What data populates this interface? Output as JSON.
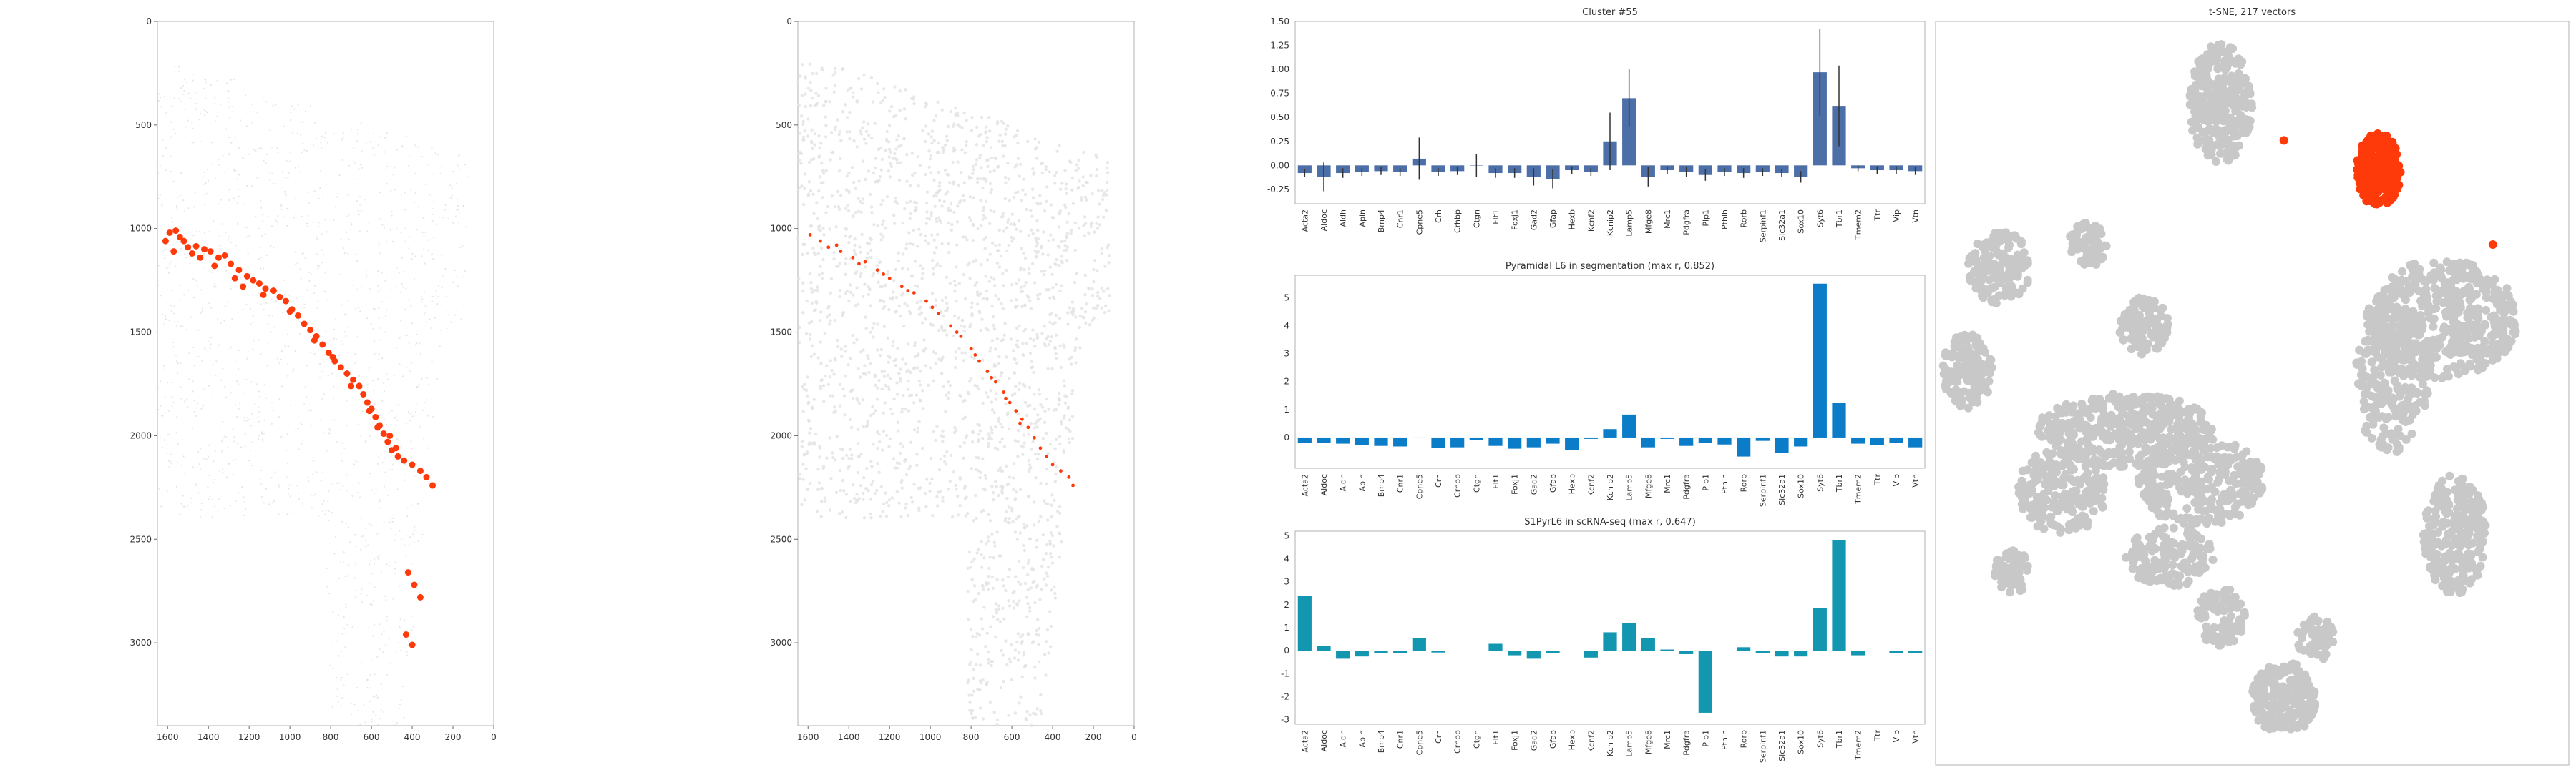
{
  "colors": {
    "highlight": "#ff3a0a",
    "bar_cluster": "#4c6fa8",
    "bar_segmentation": "#0a7cc8",
    "bar_scrnaseq": "#1396b0",
    "tsne_gray": "#c8c8c8",
    "tissue_gray": "#e2e2e2",
    "axis": "#b0b0b0"
  },
  "chart_data": [
    {
      "type": "scatter",
      "title": "",
      "xlim": [
        1650,
        0
      ],
      "ylim": [
        3400,
        0
      ],
      "xticks": [
        1600,
        1400,
        1200,
        1000,
        800,
        600,
        400,
        200,
        0
      ],
      "yticks": [
        0,
        500,
        1000,
        1500,
        2000,
        2500,
        3000
      ],
      "highlighted_points": [
        [
          1590,
          1020
        ],
        [
          1560,
          1010
        ],
        [
          1540,
          1040
        ],
        [
          1520,
          1060
        ],
        [
          1500,
          1090
        ],
        [
          1460,
          1085
        ],
        [
          1420,
          1100
        ],
        [
          1390,
          1110
        ],
        [
          1350,
          1140
        ],
        [
          1320,
          1130
        ],
        [
          1290,
          1170
        ],
        [
          1250,
          1200
        ],
        [
          1210,
          1230
        ],
        [
          1180,
          1250
        ],
        [
          1150,
          1265
        ],
        [
          1120,
          1290
        ],
        [
          1080,
          1300
        ],
        [
          1050,
          1330
        ],
        [
          1020,
          1350
        ],
        [
          990,
          1390
        ],
        [
          960,
          1420
        ],
        [
          930,
          1460
        ],
        [
          900,
          1490
        ],
        [
          870,
          1520
        ],
        [
          840,
          1560
        ],
        [
          810,
          1600
        ],
        [
          780,
          1640
        ],
        [
          750,
          1670
        ],
        [
          720,
          1700
        ],
        [
          690,
          1730
        ],
        [
          660,
          1760
        ],
        [
          640,
          1800
        ],
        [
          620,
          1840
        ],
        [
          600,
          1870
        ],
        [
          580,
          1910
        ],
        [
          560,
          1950
        ],
        [
          540,
          1990
        ],
        [
          520,
          2030
        ],
        [
          500,
          2070
        ],
        [
          470,
          2100
        ],
        [
          440,
          2120
        ],
        [
          400,
          2140
        ],
        [
          360,
          2170
        ],
        [
          330,
          2200
        ],
        [
          300,
          2240
        ],
        [
          420,
          2660
        ],
        [
          390,
          2720
        ],
        [
          360,
          2780
        ],
        [
          430,
          2960
        ],
        [
          400,
          3010
        ],
        [
          1610,
          1060
        ],
        [
          1570,
          1110
        ],
        [
          1480,
          1120
        ],
        [
          1440,
          1140
        ],
        [
          1370,
          1180
        ],
        [
          1270,
          1240
        ],
        [
          1230,
          1280
        ],
        [
          1130,
          1320
        ],
        [
          1000,
          1400
        ],
        [
          880,
          1540
        ],
        [
          790,
          1620
        ],
        [
          700,
          1760
        ],
        [
          610,
          1880
        ],
        [
          570,
          1960
        ],
        [
          510,
          2000
        ],
        [
          480,
          2060
        ]
      ]
    },
    {
      "type": "scatter",
      "title": "",
      "xlim": [
        1650,
        0
      ],
      "ylim": [
        3400,
        0
      ],
      "xticks": [
        1600,
        1400,
        1200,
        1000,
        800,
        600,
        400,
        200,
        0
      ],
      "yticks": [
        0,
        500,
        1000,
        1500,
        2000,
        2500,
        3000
      ],
      "highlighted_points": [
        [
          1590,
          1030
        ],
        [
          1540,
          1060
        ],
        [
          1500,
          1090
        ],
        [
          1440,
          1110
        ],
        [
          1380,
          1140
        ],
        [
          1320,
          1160
        ],
        [
          1260,
          1200
        ],
        [
          1200,
          1240
        ],
        [
          1140,
          1280
        ],
        [
          1080,
          1310
        ],
        [
          1020,
          1350
        ],
        [
          960,
          1410
        ],
        [
          900,
          1470
        ],
        [
          850,
          1520
        ],
        [
          800,
          1580
        ],
        [
          760,
          1640
        ],
        [
          720,
          1690
        ],
        [
          680,
          1740
        ],
        [
          640,
          1790
        ],
        [
          610,
          1840
        ],
        [
          580,
          1880
        ],
        [
          550,
          1920
        ],
        [
          520,
          1960
        ],
        [
          490,
          2010
        ],
        [
          460,
          2060
        ],
        [
          430,
          2100
        ],
        [
          400,
          2140
        ],
        [
          360,
          2170
        ],
        [
          320,
          2200
        ],
        [
          300,
          2240
        ],
        [
          1460,
          1080
        ],
        [
          1350,
          1170
        ],
        [
          1230,
          1220
        ],
        [
          1110,
          1300
        ],
        [
          990,
          1380
        ],
        [
          870,
          1500
        ],
        [
          780,
          1610
        ],
        [
          700,
          1720
        ],
        [
          630,
          1820
        ],
        [
          560,
          1940
        ]
      ]
    },
    {
      "type": "bar",
      "title": "Cluster #55",
      "categories": [
        "Acta2",
        "Aldoc",
        "Aldh",
        "Apln",
        "Bmp4",
        "Cnr1",
        "Cpne5",
        "Crh",
        "Crhbp",
        "Ctgn",
        "Flt1",
        "Foxj1",
        "Gad2",
        "Gfap",
        "Hexb",
        "Kcnf2",
        "Kcnip2",
        "Lamp5",
        "Mfge8",
        "Mrc1",
        "Pdgfra",
        "Plp1",
        "Pthlh",
        "Rorb",
        "Serpinf1",
        "Slc32a1",
        "Sox10",
        "Syt6",
        "Tbr1",
        "Tmem2",
        "Ttr",
        "Vip",
        "Vtn"
      ],
      "values": [
        -0.08,
        -0.12,
        -0.08,
        -0.07,
        -0.06,
        -0.07,
        0.07,
        -0.07,
        -0.06,
        0.0,
        -0.08,
        -0.08,
        -0.12,
        -0.14,
        -0.05,
        -0.07,
        0.25,
        0.7,
        -0.12,
        -0.05,
        -0.07,
        -0.1,
        -0.07,
        -0.08,
        -0.07,
        -0.08,
        -0.12,
        0.97,
        0.62,
        -0.03,
        -0.05,
        -0.05,
        -0.06
      ],
      "errors": [
        0.04,
        0.15,
        0.05,
        0.04,
        0.04,
        0.04,
        0.22,
        0.04,
        0.04,
        0.12,
        0.05,
        0.05,
        0.09,
        0.1,
        0.04,
        0.04,
        0.3,
        0.3,
        0.1,
        0.04,
        0.05,
        0.06,
        0.04,
        0.05,
        0.04,
        0.04,
        0.06,
        0.45,
        0.42,
        0.03,
        0.04,
        0.04,
        0.04
      ],
      "ylim": [
        -0.4,
        1.5
      ],
      "yticks": [
        "-0.25",
        "0.00",
        "0.25",
        "0.50",
        "0.75",
        "1.00",
        "1.25",
        "1.50"
      ],
      "ytick_values": [
        -0.25,
        0.0,
        0.25,
        0.5,
        0.75,
        1.0,
        1.25,
        1.5
      ]
    },
    {
      "type": "bar",
      "title": "Pyramidal L6 in segmentation (max r, 0.852)",
      "categories": [
        "Acta2",
        "Aldoc",
        "Aldh",
        "Apln",
        "Bmp4",
        "Cnr1",
        "Cpne5",
        "Crh",
        "Crhbp",
        "Ctgn",
        "Flt1",
        "Foxj1",
        "Gad2",
        "Gfap",
        "Hexb",
        "Kcnf2",
        "Kcnip2",
        "Lamp5",
        "Mfge8",
        "Mrc1",
        "Pdgfra",
        "Plp1",
        "Pthlh",
        "Rorb",
        "Serpinf1",
        "Slc32a1",
        "Sox10",
        "Syt6",
        "Tbr1",
        "Tmem2",
        "Ttr",
        "Vip",
        "Vtn"
      ],
      "values": [
        -0.2,
        -0.2,
        -0.22,
        -0.28,
        -0.3,
        -0.32,
        0.0,
        -0.38,
        -0.35,
        -0.1,
        -0.3,
        -0.4,
        -0.35,
        -0.22,
        -0.45,
        -0.05,
        0.3,
        0.82,
        -0.35,
        -0.05,
        -0.3,
        -0.18,
        -0.25,
        -0.68,
        -0.12,
        -0.55,
        -0.32,
        5.5,
        1.25,
        -0.22,
        -0.28,
        -0.18,
        -0.35
      ],
      "ylim": [
        -1.1,
        5.8
      ],
      "yticks": [
        "0",
        "1",
        "2",
        "3",
        "4",
        "5"
      ],
      "ytick_values": [
        0,
        1,
        2,
        3,
        4,
        5
      ]
    },
    {
      "type": "bar",
      "title": "S1PyrL6 in scRNA-seq (max r, 0.647)",
      "categories": [
        "Acta2",
        "Aldoc",
        "Aldh",
        "Apln",
        "Bmp4",
        "Cnr1",
        "Cpne5",
        "Crh",
        "Crhbp",
        "Ctgn",
        "Flt1",
        "Foxj1",
        "Gad2",
        "Gfap",
        "Hexb",
        "Kcnf2",
        "Kcnip2",
        "Lamp5",
        "Mfge8",
        "Mrc1",
        "Pdgfra",
        "Plp1",
        "Pthlh",
        "Rorb",
        "Serpinf1",
        "Slc32a1",
        "Sox10",
        "Syt6",
        "Tbr1",
        "Tmem2",
        "Ttr",
        "Vip",
        "Vtn"
      ],
      "values": [
        2.4,
        0.2,
        -0.35,
        -0.25,
        -0.12,
        -0.1,
        0.55,
        -0.08,
        0.0,
        0.0,
        0.3,
        -0.2,
        -0.35,
        -0.1,
        0.0,
        -0.3,
        0.8,
        1.2,
        0.55,
        0.05,
        -0.15,
        -2.7,
        0.0,
        0.15,
        -0.1,
        -0.25,
        -0.25,
        1.85,
        4.8,
        -0.2,
        0.0,
        -0.12,
        -0.1
      ],
      "ylim": [
        -3.2,
        5.2
      ],
      "yticks": [
        "-3",
        "-2",
        "-1",
        "0",
        "1",
        "2",
        "3",
        "4",
        "5"
      ],
      "ytick_values": [
        -3,
        -2,
        -1,
        0,
        1,
        2,
        3,
        4,
        5
      ]
    },
    {
      "type": "scatter",
      "title": "t-SNE, 217 vectors",
      "highlighted_cluster_center": [
        0.7,
        0.85
      ],
      "outlier_points": [
        [
          0.55,
          0.84
        ],
        [
          0.88,
          0.7
        ]
      ]
    }
  ]
}
